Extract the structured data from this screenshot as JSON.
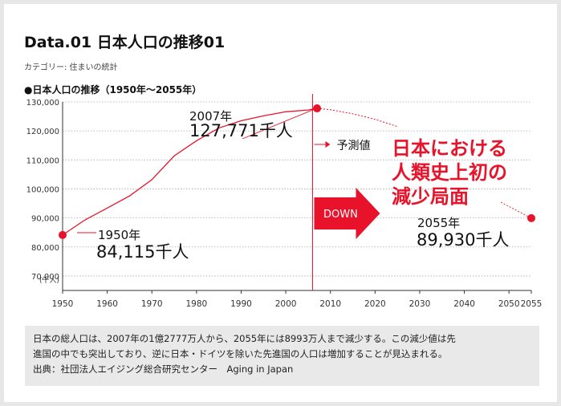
{
  "header": {
    "title": "Data.01 日本人口の推移01",
    "category": "カテゴリー: 住まいの統計",
    "chart_heading": "●日本人口の推移（1950年～2055年）"
  },
  "chart_data": {
    "type": "line",
    "x": [
      1950,
      1955,
      1960,
      1965,
      1970,
      1975,
      1980,
      1985,
      1990,
      1995,
      2000,
      2005,
      2010,
      2015,
      2020,
      2025,
      2030,
      2035,
      2040,
      2045,
      2050,
      2055
    ],
    "series": [
      {
        "segment": "actual",
        "x": [
          1950,
          1955,
          1960,
          1965,
          1970,
          1975,
          1980,
          1985,
          1990,
          1995,
          2000,
          2005,
          2007
        ],
        "values": [
          84115,
          89300,
          93400,
          97600,
          103200,
          111400,
          116600,
          121000,
          123500,
          125200,
          126600,
          127200,
          127771
        ]
      },
      {
        "segment": "projection",
        "x": [
          2007,
          2010,
          2015,
          2020,
          2025
        ],
        "values": [
          127771,
          127300,
          125900,
          124000,
          121500
        ]
      }
    ],
    "xlim": [
      1950,
      2055
    ],
    "ylim": [
      65000,
      130000
    ],
    "x_ticks": [
      "1950",
      "1960",
      "1970",
      "1980",
      "1990",
      "2000",
      "2010",
      "2020",
      "2030",
      "2040",
      "2050",
      "2055"
    ],
    "x_tick_values": [
      1950,
      1960,
      1970,
      1980,
      1990,
      2000,
      2010,
      2020,
      2030,
      2040,
      2050,
      2055
    ],
    "y_ticks": [
      "70,000",
      "80,000",
      "90,000",
      "100,000",
      "110,000",
      "120,000",
      "130,000"
    ],
    "y_tick_values": [
      70000,
      80000,
      90000,
      100000,
      110000,
      120000,
      130000
    ],
    "y_unit": "(千人)",
    "grid": true,
    "divider_year": 2006,
    "points": [
      {
        "x": 1950,
        "y": 84115,
        "year_label": "1950年",
        "value_label": "84,115千人"
      },
      {
        "x": 2007,
        "y": 127771,
        "year_label": "2007年",
        "value_label": "127,771千人"
      },
      {
        "x": 2055,
        "y": 89930,
        "year_label": "2055年",
        "value_label": "89,930千人"
      }
    ],
    "annotations": {
      "forecast": "予測値",
      "down": "DOWN",
      "headline": [
        "日本における",
        "人類史上初の",
        "減少局面"
      ]
    },
    "colors": {
      "line": "#e8132a",
      "accent": "#e8132a",
      "grid": "#aaaaaa",
      "axis": "#333333"
    }
  },
  "note": {
    "lines": [
      "日本の総人口は、2007年の1億2777万人から、2055年には8993万人まで減少する。この減少値は先",
      "進国の中でも突出しており、逆に日本・ドイツを除いた先進国の人口は増加することが見込まれる。",
      "出典：社団法人エイジング総合研究センター　Aging in Japan"
    ]
  }
}
